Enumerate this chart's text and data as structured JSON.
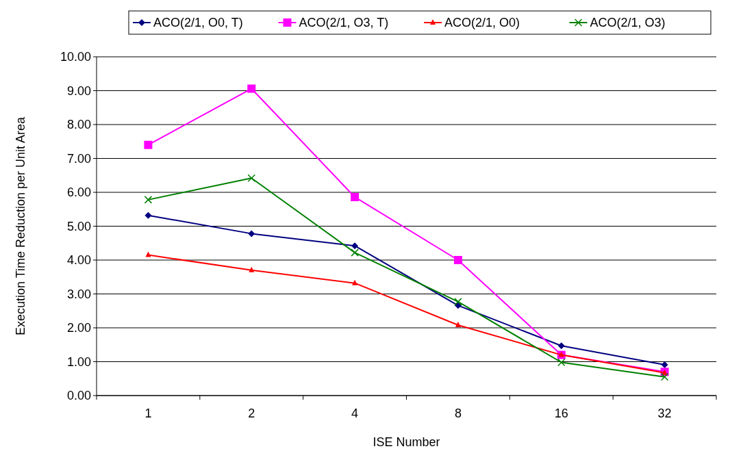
{
  "chart_data": {
    "type": "line",
    "xlabel": "ISE Number",
    "ylabel": "Execution Time Reduction per Unit Area",
    "categories": [
      "1",
      "2",
      "4",
      "8",
      "16",
      "32"
    ],
    "series": [
      {
        "name": "ACO(2/1, O0, T)",
        "color": "#000080",
        "marker": "diamond",
        "values": [
          5.32,
          4.78,
          4.42,
          2.66,
          1.47,
          0.91
        ]
      },
      {
        "name": "ACO(2/1, O3, T)",
        "color": "#ff00ff",
        "marker": "square",
        "values": [
          7.4,
          9.06,
          5.86,
          4.0,
          1.2,
          0.7
        ]
      },
      {
        "name": "ACO(2/1, O0)",
        "color": "#ff0000",
        "marker": "triangle",
        "values": [
          4.15,
          3.7,
          3.32,
          2.08,
          1.2,
          0.67
        ]
      },
      {
        "name": "ACO(2/1, O3)",
        "color": "#008000",
        "marker": "cross",
        "values": [
          5.78,
          6.42,
          4.22,
          2.77,
          0.98,
          0.55
        ]
      }
    ],
    "ylim": [
      0,
      10
    ],
    "yticks": [
      {
        "value": 0,
        "label": "0.00"
      },
      {
        "value": 1,
        "label": "1.00"
      },
      {
        "value": 2,
        "label": "2.00"
      },
      {
        "value": 3,
        "label": "3.00"
      },
      {
        "value": 4,
        "label": "4.00"
      },
      {
        "value": 5,
        "label": "5.00"
      },
      {
        "value": 6,
        "label": "6.00"
      },
      {
        "value": 7,
        "label": "7.00"
      },
      {
        "value": 8,
        "label": "8.00"
      },
      {
        "value": 9,
        "label": "9.00"
      },
      {
        "value": 10,
        "label": "10.00"
      }
    ],
    "grid": "y",
    "legend": "top"
  }
}
